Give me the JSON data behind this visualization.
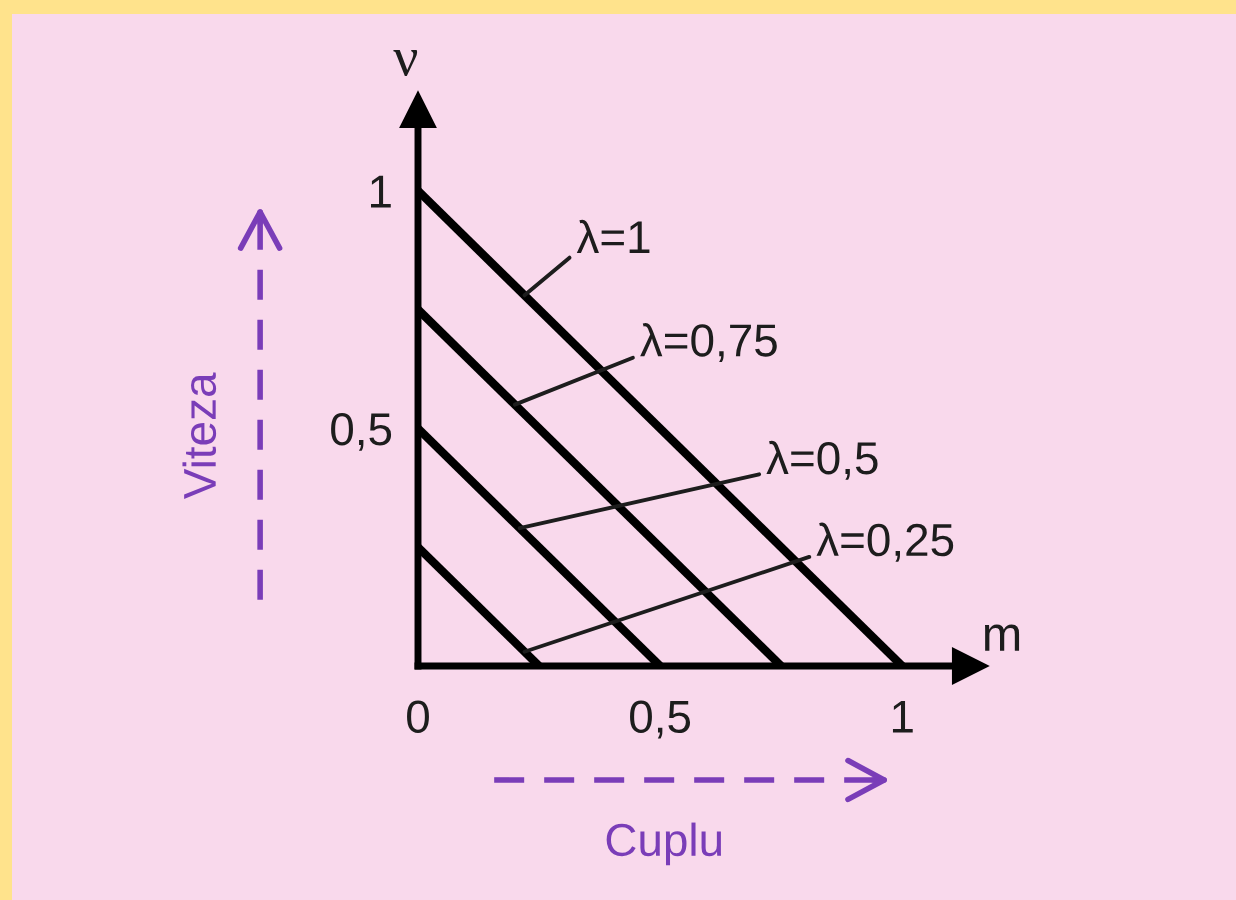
{
  "chart_data": {
    "type": "line",
    "xlabel": "m",
    "ylabel": "ν",
    "series": [
      {
        "color": "#000000",
        "x": [
          0,
          1
        ],
        "values": [
          1,
          0
        ]
      },
      {
        "color": "#000000",
        "x": [
          0,
          0.75
        ],
        "values": [
          0.75,
          0
        ]
      },
      {
        "color": "#000000",
        "x": [
          0,
          0.5
        ],
        "values": [
          0.5,
          0
        ]
      },
      {
        "color": "#000000",
        "x": [
          0,
          0.25
        ],
        "values": [
          0.25,
          0
        ]
      }
    ],
    "xlim": [
      0,
      1.14
    ],
    "ylim": [
      0,
      1.17
    ],
    "xticks": [
      0,
      {
        "value": 0.5,
        "label": "0,5"
      },
      1
    ],
    "yticks": [
      {
        "value": 0.5,
        "label": "0,5"
      },
      1
    ],
    "annotations": [
      {
        "text": "λ=1",
        "x": 0.22,
        "y": 0.78
      },
      {
        "text": "λ=0,75",
        "x": 0.2,
        "y": 0.55
      },
      {
        "text": "λ=0,5",
        "x": 0.21,
        "y": 0.29
      },
      {
        "text": "λ=0,25",
        "x": 0.22,
        "y": 0.03
      },
      "Viteza",
      "Cuplu"
    ]
  }
}
